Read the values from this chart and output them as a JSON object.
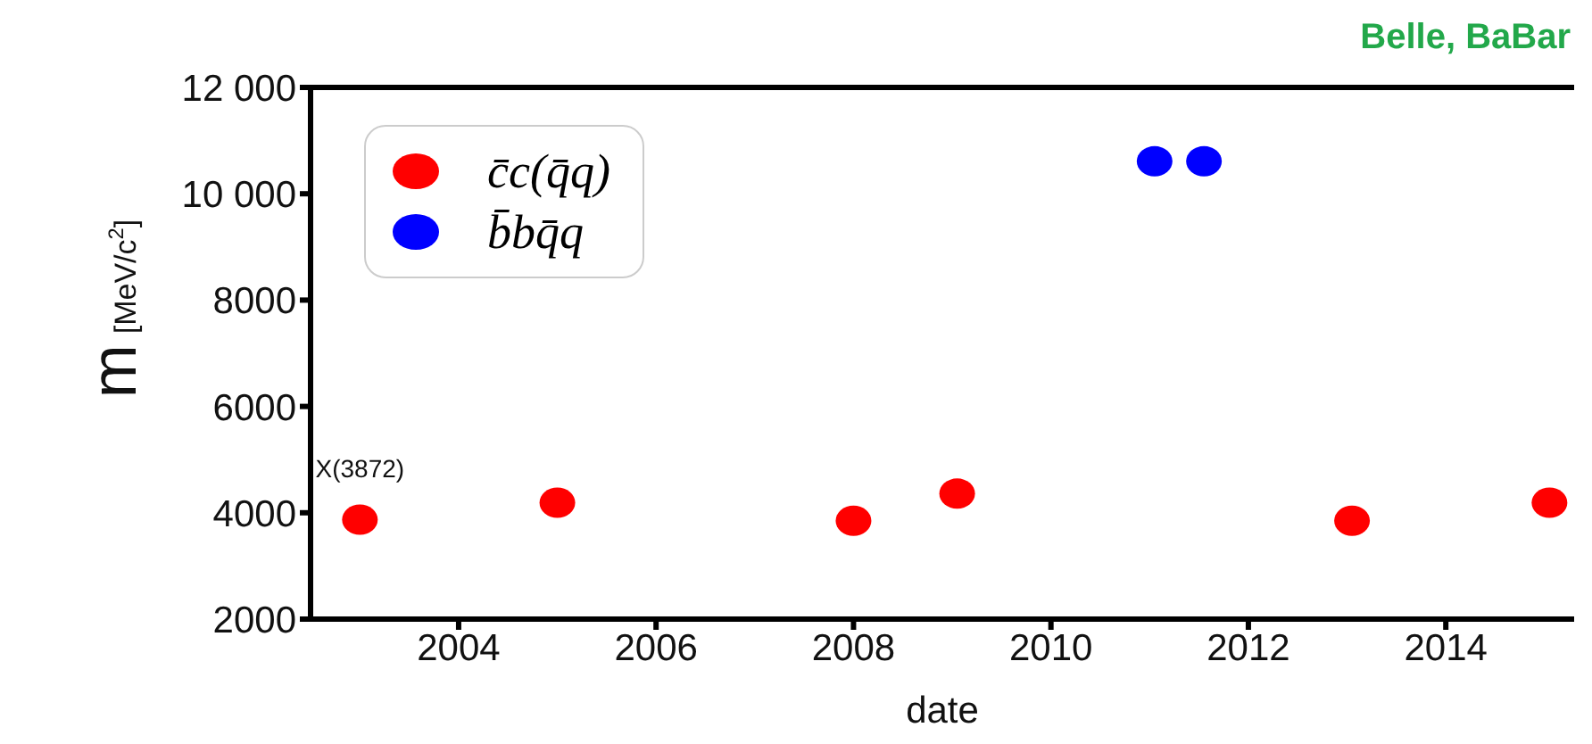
{
  "chart_data": {
    "type": "scatter",
    "title": "Belle, BaBar",
    "xlabel": "date",
    "ylabel": "m [MeV/c$^{2}$]",
    "series": [
      {
        "name": "c̄c(q̄q)",
        "color": "#ff0000",
        "x": [
          2003,
          2005,
          2008,
          2009.05,
          2013.05,
          2015.05
        ],
        "values": [
          3870,
          4190,
          3850,
          4360,
          3850,
          4190
        ]
      },
      {
        "name": "b̄bq̄q",
        "color": "#0000ff",
        "x": [
          2011.05,
          2011.55
        ],
        "values": [
          10610,
          10610
        ]
      }
    ],
    "annotations": [
      {
        "text": "X(3872)",
        "x": 2003,
        "y": 3870
      }
    ],
    "xlim": [
      2002.5,
      2015.3
    ],
    "xticks": [
      2004,
      2006,
      2008,
      2010,
      2012,
      2014
    ],
    "ylim": [
      2000,
      12000
    ],
    "yticks": [
      2000,
      4000,
      6000,
      8000,
      {
        "value": 10000,
        "label": "10 000"
      },
      {
        "value": 12000,
        "label": "12 000"
      }
    ],
    "marker": "circle",
    "legend": "top left",
    "grid": false
  }
}
